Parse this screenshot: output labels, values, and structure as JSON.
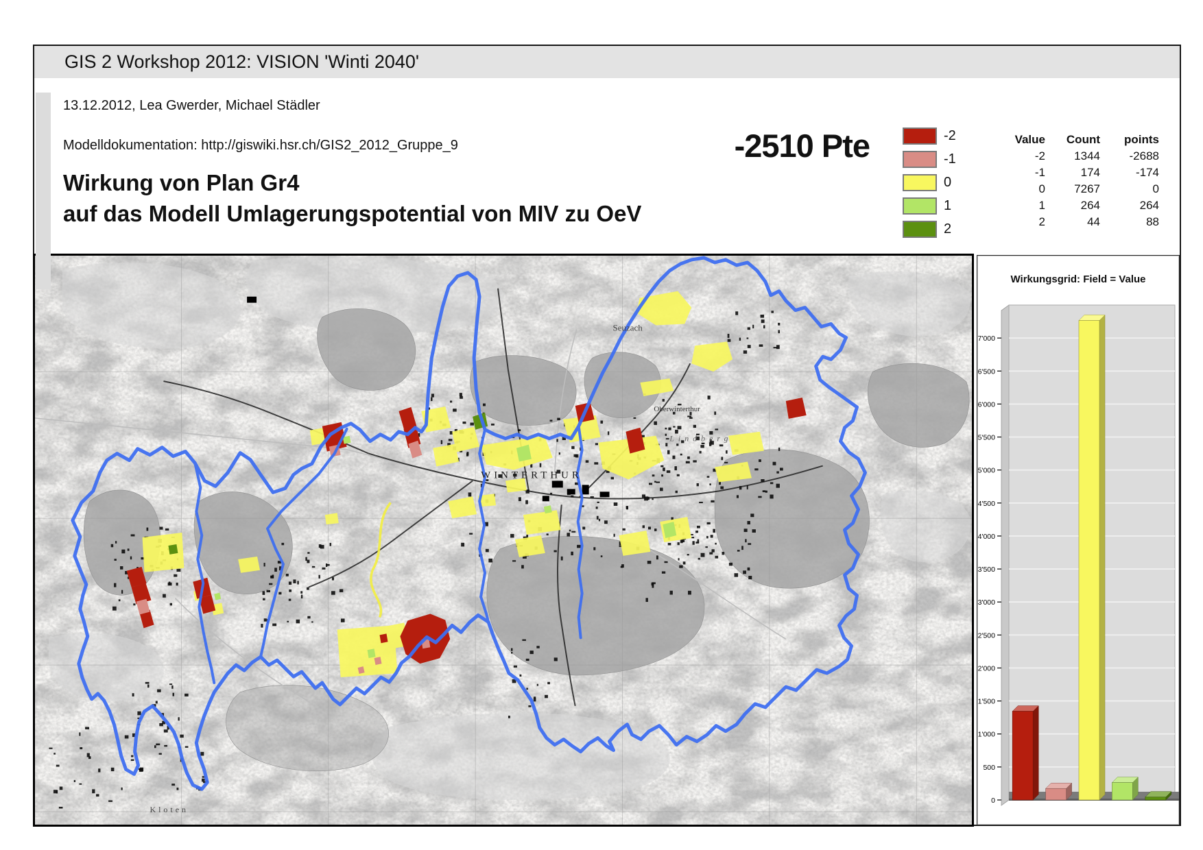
{
  "header": {
    "title": "GIS 2 Workshop 2012: VISION 'Winti 2040'"
  },
  "meta": {
    "date_authors": "13.12.2012, Lea Gwerder, Michael Städler",
    "documentation": "Modelldokumentation: http://giswiki.hsr.ch/GIS2_2012_Gruppe_9"
  },
  "title": {
    "line1": "Wirkung von Plan Gr4",
    "line2": "auf das Modell Umlagerungspotential von MIV zu OeV"
  },
  "score": {
    "value": "-2510 Pte"
  },
  "legend": {
    "items": [
      {
        "label": "-2",
        "color": "#b51e0e"
      },
      {
        "label": "-1",
        "color": "#d98c85"
      },
      {
        "label": "0",
        "color": "#f8f75f"
      },
      {
        "label": "1",
        "color": "#b2e566"
      },
      {
        "label": "2",
        "color": "#5c9010"
      }
    ]
  },
  "stats_table": {
    "columns": [
      "Value",
      "Count",
      "points"
    ],
    "rows": [
      [
        "-2",
        "1344",
        "-2688"
      ],
      [
        "-1",
        "174",
        "-174"
      ],
      [
        "0",
        "7267",
        "0"
      ],
      [
        "1",
        "264",
        "264"
      ],
      [
        "2",
        "44",
        "88"
      ]
    ]
  },
  "map": {
    "boundary_color": "#3f6ff0",
    "route_color": "#f3ee3f",
    "labels": [
      {
        "text": "WINTERTHUR"
      },
      {
        "text": "Seuzach"
      },
      {
        "text": "Oberwinterthur"
      },
      {
        "text": "Lindberg"
      },
      {
        "text": "Kloten"
      }
    ]
  },
  "chart_data": {
    "type": "bar",
    "title": "Wirkungsgrid: Field = Value",
    "categories": [
      "-2",
      "-1",
      "0",
      "1",
      "2"
    ],
    "values": [
      1344,
      174,
      7267,
      264,
      44
    ],
    "colors": [
      "#b51e0e",
      "#d98c85",
      "#f8f75f",
      "#b2e566",
      "#5c9010"
    ],
    "xlabel": "",
    "ylabel": "",
    "ylim": [
      0,
      7500
    ],
    "ytick_step": 500,
    "ytick_labels": [
      "0",
      "500",
      "1'000",
      "1'500",
      "2'000",
      "2'500",
      "3'000",
      "3'500",
      "4'000",
      "4'500",
      "5'000",
      "5'500",
      "6'000",
      "6'500",
      "7'000"
    ],
    "grid": true,
    "legend_position": "none"
  }
}
